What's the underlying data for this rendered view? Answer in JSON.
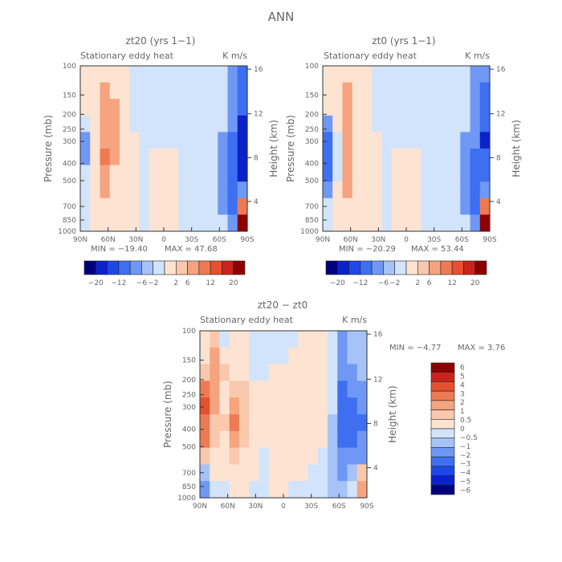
{
  "figure": {
    "title": "ANN"
  },
  "colors": {
    "neg": [
      "#00007f",
      "#0b22c8",
      "#1e48e6",
      "#3d6ff0",
      "#6f98f5",
      "#a6c3f8",
      "#d2e4fb"
    ],
    "pos": [
      "#fde3d2",
      "#fac8ad",
      "#f5a47f",
      "#ee7a53",
      "#e6502f",
      "#c9241b",
      "#8e0000"
    ]
  },
  "chart_data": [
    {
      "type": "heatmap",
      "title": "zt20 (yrs 1−1)",
      "subtitle": "Stationary eddy heat",
      "units": "K m/s",
      "ylabel": "Pressure (mb)",
      "y2label": "Height (km)",
      "x_ticks": [
        "90N",
        "60N",
        "30N",
        "0",
        "30S",
        "60S",
        "90S"
      ],
      "y_ticks": [
        "100",
        "150",
        "200",
        "250",
        "300",
        "400",
        "500",
        "700",
        "850",
        "1000"
      ],
      "y2_ticks": [
        "16",
        "12",
        "8",
        "4"
      ],
      "min_label": "MIN = −19.40",
      "max_label": "MAX =  47.68",
      "min": -19.4,
      "max": 47.68,
      "colorbar_ticks": [
        "−20",
        "−12",
        "−6",
        "−2",
        "2",
        "6",
        "12",
        "20"
      ],
      "cells": [
        [
          0.2,
          0.8,
          1.6,
          0.5,
          0.2,
          -1.0,
          -1.2,
          -1.5,
          -1.5,
          -1.5,
          -1.4,
          -1.5,
          -1.6,
          -1.6,
          -1.5,
          -3.0,
          -10.0
        ],
        [
          0.2,
          0.9,
          2.0,
          1.5,
          0.4,
          -1.0,
          -1.1,
          -1.4,
          -1.5,
          -1.5,
          -1.4,
          -1.5,
          -1.6,
          -1.6,
          -1.5,
          -4.0,
          -11.0
        ],
        [
          0.2,
          1.2,
          3.0,
          2.0,
          0.5,
          -1.0,
          -1.0,
          -0.8,
          -1.2,
          -1.3,
          -1.4,
          -1.4,
          -1.4,
          -1.6,
          -1.4,
          -5.0,
          -12.0
        ],
        [
          -1.5,
          1.0,
          4.0,
          2.5,
          0.6,
          -0.9,
          -1.0,
          -0.8,
          -1.0,
          -1.3,
          -1.4,
          -1.4,
          -1.4,
          -1.5,
          -2.0,
          -6.0,
          -14.0
        ],
        [
          -3.5,
          0.5,
          5.5,
          2.0,
          0.8,
          0.3,
          -0.5,
          -0.8,
          -1.0,
          -0.5,
          -1.4,
          -1.4,
          -1.5,
          -1.5,
          -3.0,
          -7.0,
          -16.0
        ],
        [
          -3.0,
          0.6,
          6.0,
          2.0,
          1.0,
          0.4,
          -0.4,
          0.3,
          0.5,
          0.6,
          -1.3,
          -1.4,
          -1.5,
          -1.5,
          -4.0,
          -8.0,
          -15.0
        ],
        [
          -2.0,
          0.5,
          4.5,
          1.5,
          0.8,
          0.3,
          -0.4,
          0.4,
          0.6,
          0.5,
          -1.2,
          -1.3,
          -1.5,
          -1.4,
          -5.0,
          -9.0,
          -13.0
        ],
        [
          -1.0,
          0.8,
          2.0,
          0.6,
          0.5,
          0.4,
          -0.3,
          0.5,
          0.6,
          0.3,
          -1.0,
          -1.2,
          -1.3,
          -1.5,
          -4.0,
          -10.0,
          -6.0
        ],
        [
          -0.5,
          1.2,
          1.5,
          0.5,
          0.3,
          0.2,
          -0.5,
          0.3,
          0.4,
          0.2,
          -1.0,
          -1.1,
          -1.2,
          -1.4,
          -3.0,
          -12.0,
          8.0
        ],
        [
          -0.3,
          1.0,
          1.0,
          0.3,
          0.2,
          0.1,
          -0.5,
          0.2,
          0.3,
          0.1,
          -1.0,
          -1.0,
          -1.1,
          -1.3,
          -2.0,
          -6.0,
          22.0
        ]
      ]
    },
    {
      "type": "heatmap",
      "title": "zt0 (yrs 1−1)",
      "subtitle": "Stationary eddy heat",
      "units": "K m/s",
      "ylabel": "Pressure (mb)",
      "y2label": "Height (km)",
      "x_ticks": [
        "90N",
        "60N",
        "30N",
        "0",
        "30S",
        "60S",
        "90S"
      ],
      "y_ticks": [
        "100",
        "150",
        "200",
        "250",
        "300",
        "400",
        "500",
        "700",
        "850",
        "1000"
      ],
      "y2_ticks": [
        "16",
        "12",
        "8",
        "4"
      ],
      "min_label": "MIN = −20.29",
      "max_label": "MAX =  53.44",
      "min": -20.29,
      "max": 53.44,
      "colorbar_ticks": [
        "−20",
        "−12",
        "−6",
        "−2",
        "2",
        "6",
        "12",
        "20"
      ],
      "cells": [
        [
          0.2,
          0.8,
          1.5,
          0.6,
          0.2,
          -1.0,
          -1.2,
          -1.5,
          -1.5,
          -1.5,
          -1.4,
          -1.5,
          -1.6,
          -1.6,
          -1.5,
          -2.5,
          -6.0
        ],
        [
          0.2,
          0.9,
          2.2,
          1.2,
          0.4,
          -1.0,
          -1.1,
          -1.4,
          -1.5,
          -1.5,
          -1.4,
          -1.5,
          -1.6,
          -1.6,
          -1.5,
          -3.0,
          -7.0
        ],
        [
          0.2,
          1.2,
          3.0,
          1.6,
          0.5,
          -1.0,
          -1.0,
          -0.8,
          -1.2,
          -1.3,
          -1.4,
          -1.4,
          -1.4,
          -1.6,
          -1.4,
          -4.0,
          -9.0
        ],
        [
          -4.0,
          1.0,
          3.5,
          1.8,
          0.6,
          -0.9,
          -1.0,
          -0.8,
          -1.0,
          -1.3,
          -1.4,
          -1.4,
          -1.4,
          -1.5,
          -2.0,
          -5.0,
          -11.0
        ],
        [
          -9.0,
          -1.0,
          4.0,
          1.6,
          0.8,
          0.3,
          -0.5,
          -0.8,
          -1.0,
          -0.5,
          -1.4,
          -1.4,
          -1.5,
          -1.5,
          -2.5,
          -6.0,
          -13.0
        ],
        [
          -12.0,
          -1.5,
          4.5,
          1.6,
          1.0,
          0.4,
          -0.4,
          0.3,
          0.5,
          0.6,
          -1.3,
          -1.4,
          -1.5,
          -1.5,
          -3.0,
          -7.0,
          -12.0
        ],
        [
          -8.0,
          -1.0,
          3.5,
          1.2,
          0.8,
          0.3,
          -0.4,
          0.4,
          0.6,
          0.5,
          -1.2,
          -1.3,
          -1.5,
          -1.4,
          -4.0,
          -8.0,
          -10.0
        ],
        [
          -3.0,
          0.4,
          2.0,
          0.6,
          0.5,
          0.4,
          -0.3,
          0.5,
          0.6,
          0.3,
          -1.0,
          -1.2,
          -1.3,
          -1.5,
          -4.0,
          -9.0,
          -5.0
        ],
        [
          -1.5,
          1.2,
          1.5,
          0.5,
          0.3,
          0.2,
          -0.5,
          0.3,
          0.4,
          0.2,
          -1.0,
          -1.1,
          -1.2,
          -1.4,
          -3.0,
          -10.0,
          7.0
        ],
        [
          -0.5,
          1.0,
          1.0,
          0.3,
          0.2,
          0.1,
          -0.5,
          0.2,
          0.3,
          0.1,
          -1.0,
          -1.0,
          -1.1,
          -1.3,
          -2.0,
          -6.0,
          20.0
        ]
      ]
    },
    {
      "type": "heatmap",
      "title": "zt20 − zt0",
      "subtitle": "Stationary eddy heat",
      "units": "K m/s",
      "ylabel": "Pressure (mb)",
      "y2label": "Height (km)",
      "x_ticks": [
        "90N",
        "60N",
        "30N",
        "0",
        "30S",
        "60S",
        "90S"
      ],
      "y_ticks": [
        "100",
        "150",
        "200",
        "250",
        "300",
        "400",
        "500",
        "700",
        "850",
        "1000"
      ],
      "y2_ticks": [
        "16",
        "12",
        "8",
        "4"
      ],
      "min_label": "MIN =   −4.77",
      "max_label": "MAX =    3.76",
      "min": -4.77,
      "max": 3.76,
      "colorbar_ticks": [
        "6",
        "5",
        "4",
        "3",
        "2",
        "1",
        "0.5",
        "0",
        "−0.5",
        "−1",
        "−2",
        "−3",
        "−4",
        "−5",
        "−6"
      ],
      "cells": [
        [
          0.2,
          0.8,
          -0.2,
          0.2,
          0.1,
          -0.2,
          -0.3,
          -0.2,
          -0.3,
          -0.3,
          0.2,
          0.3,
          0.2,
          -0.2,
          -1.2,
          -0.8,
          -0.6
        ],
        [
          0.4,
          1.0,
          0.3,
          0.2,
          0.1,
          -0.2,
          -0.3,
          -0.2,
          -0.3,
          0.2,
          0.3,
          0.3,
          0.2,
          -0.2,
          -1.5,
          -1.0,
          -0.8
        ],
        [
          0.6,
          1.5,
          0.5,
          0.3,
          0.2,
          -0.1,
          -0.2,
          0.2,
          0.2,
          0.2,
          0.3,
          0.2,
          0.2,
          -0.3,
          -1.8,
          -1.2,
          -1.0
        ],
        [
          2.5,
          1.2,
          0.3,
          0.6,
          0.8,
          0.2,
          0.2,
          0.3,
          0.2,
          0.2,
          0.2,
          0.2,
          0.2,
          -0.4,
          -2.2,
          -1.6,
          -1.2
        ],
        [
          4.5,
          1.0,
          0.4,
          1.5,
          0.6,
          0.2,
          0.1,
          0.2,
          0.2,
          0.2,
          0.2,
          0.2,
          0.1,
          -0.5,
          -2.8,
          -2.5,
          -1.8
        ],
        [
          3.5,
          0.8,
          0.5,
          2.0,
          0.8,
          0.2,
          0.1,
          0.2,
          0.2,
          0.1,
          0.2,
          0.2,
          0.1,
          -0.6,
          -3.2,
          -3.0,
          -2.5
        ],
        [
          2.0,
          0.6,
          0.4,
          1.2,
          0.6,
          0.2,
          0.1,
          0.2,
          0.2,
          0.2,
          0.2,
          0.1,
          0.1,
          -0.6,
          -2.5,
          -2.8,
          -2.0
        ],
        [
          0.8,
          0.4,
          0.3,
          0.5,
          0.3,
          0.2,
          -0.2,
          0.2,
          0.2,
          0.2,
          0.1,
          0.1,
          -0.2,
          -0.6,
          -1.8,
          -2.0,
          -1.2
        ],
        [
          -0.8,
          0.3,
          0.2,
          0.3,
          0.2,
          0.1,
          -0.2,
          0.1,
          0.2,
          0.1,
          0.1,
          -0.2,
          -0.3,
          -0.8,
          -1.2,
          -1.0,
          0.6
        ],
        [
          -1.5,
          -0.3,
          -0.2,
          0.2,
          0.1,
          -0.2,
          -0.2,
          0.1,
          0.1,
          -0.2,
          -0.2,
          -0.3,
          -0.4,
          -0.6,
          -0.8,
          -0.4,
          1.2
        ]
      ]
    }
  ]
}
